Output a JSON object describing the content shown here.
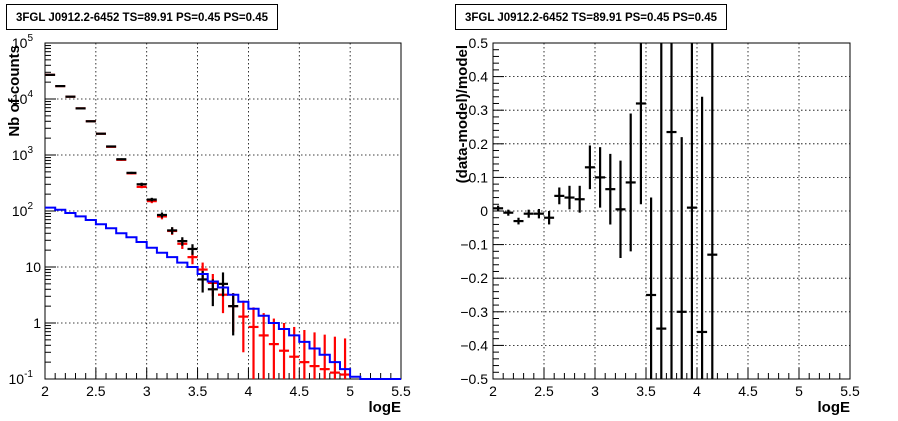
{
  "chart_data": [
    {
      "type": "scatter",
      "title": "3FGL J0912.2-6452 TS=89.91 PS=0.45 PS=0.45",
      "xlabel": "logE",
      "ylabel": "Nb of counts",
      "yscale": "log",
      "xlim": [
        2,
        5.5
      ],
      "ylim": [
        0.1,
        100000
      ],
      "grid": true,
      "x_ticks": [
        "2",
        "2.5",
        "3",
        "3.5",
        "4",
        "4.5",
        "5",
        "5.5"
      ],
      "y_ticks": [
        {
          "value": 0.1,
          "base": "10",
          "exp": "-1"
        },
        {
          "value": 1,
          "base": "1",
          "exp": ""
        },
        {
          "value": 10,
          "base": "10",
          "exp": ""
        },
        {
          "value": 100,
          "base": "10",
          "exp": "2"
        },
        {
          "value": 1000,
          "base": "10",
          "exp": "3"
        },
        {
          "value": 10000,
          "base": "10",
          "exp": "4"
        },
        {
          "value": 100000,
          "base": "10",
          "exp": "5"
        }
      ],
      "series": [
        {
          "color": "#ff0000",
          "style": "errorbars",
          "points": [
            {
              "x": 2.05,
              "y": 27000,
              "ylo": 26700,
              "yhi": 27300
            },
            {
              "x": 2.15,
              "y": 17000,
              "ylo": 16800,
              "yhi": 17200
            },
            {
              "x": 2.25,
              "y": 11000,
              "ylo": 10800,
              "yhi": 11200
            },
            {
              "x": 2.35,
              "y": 6800,
              "ylo": 6700,
              "yhi": 6900
            },
            {
              "x": 2.45,
              "y": 4000,
              "ylo": 3940,
              "yhi": 4060
            },
            {
              "x": 2.55,
              "y": 2400,
              "ylo": 2350,
              "yhi": 2450
            },
            {
              "x": 2.65,
              "y": 1400,
              "ylo": 1360,
              "yhi": 1440
            },
            {
              "x": 2.75,
              "y": 820,
              "ylo": 790,
              "yhi": 850
            },
            {
              "x": 2.85,
              "y": 470,
              "ylo": 450,
              "yhi": 490
            },
            {
              "x": 2.95,
              "y": 270,
              "ylo": 255,
              "yhi": 285
            },
            {
              "x": 3.05,
              "y": 150,
              "ylo": 138,
              "yhi": 162
            },
            {
              "x": 3.15,
              "y": 80,
              "ylo": 71,
              "yhi": 89
            },
            {
              "x": 3.25,
              "y": 44,
              "ylo": 37.5,
              "yhi": 50.5
            },
            {
              "x": 3.35,
              "y": 26,
              "ylo": 21,
              "yhi": 31
            },
            {
              "x": 3.45,
              "y": 15,
              "ylo": 11.2,
              "yhi": 18.8
            },
            {
              "x": 3.55,
              "y": 9,
              "ylo": 6,
              "yhi": 12
            },
            {
              "x": 3.65,
              "y": 5.2,
              "ylo": 3,
              "yhi": 7.5
            },
            {
              "x": 3.75,
              "y": 3.2,
              "ylo": 1.5,
              "yhi": 5
            },
            {
              "x": 3.85,
              "y": 2,
              "ylo": 0.7,
              "yhi": 3.4
            },
            {
              "x": 3.95,
              "y": 1.3,
              "ylo": 0.3,
              "yhi": 2.5
            },
            {
              "x": 4.05,
              "y": 0.85,
              "ylo": 0.1,
              "yhi": 1.9
            },
            {
              "x": 4.15,
              "y": 0.6,
              "ylo": 0.1,
              "yhi": 1.5
            },
            {
              "x": 4.25,
              "y": 0.42,
              "ylo": 0.1,
              "yhi": 1.2
            },
            {
              "x": 4.35,
              "y": 0.32,
              "ylo": 0.1,
              "yhi": 1.0
            },
            {
              "x": 4.45,
              "y": 0.25,
              "ylo": 0.1,
              "yhi": 0.85
            },
            {
              "x": 4.55,
              "y": 0.2,
              "ylo": 0.1,
              "yhi": 0.75
            },
            {
              "x": 4.65,
              "y": 0.17,
              "ylo": 0.1,
              "yhi": 0.68
            },
            {
              "x": 4.75,
              "y": 0.15,
              "ylo": 0.1,
              "yhi": 0.62
            },
            {
              "x": 4.85,
              "y": 0.13,
              "ylo": 0.1,
              "yhi": 0.57
            },
            {
              "x": 4.95,
              "y": 0.12,
              "ylo": 0.1,
              "yhi": 0.53
            }
          ]
        },
        {
          "color": "#000000",
          "style": "errorbars",
          "points": [
            {
              "x": 2.05,
              "y": 27000,
              "ylo": 26700,
              "yhi": 27300
            },
            {
              "x": 2.15,
              "y": 17000,
              "ylo": 16800,
              "yhi": 17200
            },
            {
              "x": 2.25,
              "y": 11000,
              "ylo": 10800,
              "yhi": 11200
            },
            {
              "x": 2.35,
              "y": 6800,
              "ylo": 6700,
              "yhi": 6900
            },
            {
              "x": 2.45,
              "y": 4000,
              "ylo": 3940,
              "yhi": 4060
            },
            {
              "x": 2.55,
              "y": 2400,
              "ylo": 2350,
              "yhi": 2450
            },
            {
              "x": 2.65,
              "y": 1420,
              "ylo": 1380,
              "yhi": 1460
            },
            {
              "x": 2.75,
              "y": 840,
              "ylo": 810,
              "yhi": 870
            },
            {
              "x": 2.85,
              "y": 480,
              "ylo": 460,
              "yhi": 500
            },
            {
              "x": 2.95,
              "y": 300,
              "ylo": 280,
              "yhi": 320
            },
            {
              "x": 3.05,
              "y": 160,
              "ylo": 148,
              "yhi": 172
            },
            {
              "x": 3.15,
              "y": 85,
              "ylo": 76,
              "yhi": 94
            },
            {
              "x": 3.25,
              "y": 45,
              "ylo": 38.5,
              "yhi": 51.5
            },
            {
              "x": 3.35,
              "y": 29,
              "ylo": 24,
              "yhi": 34
            },
            {
              "x": 3.45,
              "y": 21,
              "ylo": 16.5,
              "yhi": 25.5
            },
            {
              "x": 3.55,
              "y": 6,
              "ylo": 3.5,
              "yhi": 8.5
            },
            {
              "x": 3.65,
              "y": 4,
              "ylo": 2,
              "yhi": 6
            },
            {
              "x": 3.75,
              "y": 5,
              "ylo": 3,
              "yhi": 8
            },
            {
              "x": 3.85,
              "y": 2,
              "ylo": 0.6,
              "yhi": 3.4
            }
          ]
        },
        {
          "color": "#0000ff",
          "style": "histogram",
          "bin_edges": [
            2.0,
            2.1,
            2.2,
            2.3,
            2.4,
            2.5,
            2.6,
            2.7,
            2.8,
            2.9,
            3.0,
            3.1,
            3.2,
            3.3,
            3.4,
            3.5,
            3.6,
            3.7,
            3.8,
            3.9,
            4.0,
            4.1,
            4.2,
            4.3,
            4.4,
            4.5,
            4.6,
            4.7,
            4.8,
            4.9,
            5.0,
            5.1,
            5.2,
            5.3,
            5.4,
            5.5
          ],
          "values": [
            115,
            105,
            92,
            80,
            69,
            58,
            49,
            40,
            34,
            28,
            22,
            18,
            15,
            12,
            10,
            7.5,
            5.5,
            4.3,
            3.2,
            2.4,
            1.8,
            1.35,
            1.0,
            0.78,
            0.6,
            0.46,
            0.35,
            0.27,
            0.2,
            0.15,
            0.11,
            0.1,
            0.1,
            0.1,
            0.1
          ]
        }
      ]
    },
    {
      "type": "scatter",
      "title": "3FGL J0912.2-6452 TS=89.91 PS=0.45 PS=0.45",
      "xlabel": "logE",
      "ylabel": "(data-model)/model",
      "xlim": [
        2,
        5.5
      ],
      "ylim": [
        -0.5,
        0.5
      ],
      "grid": true,
      "x_ticks": [
        "2",
        "2.5",
        "3",
        "3.5",
        "4",
        "4.5",
        "5",
        "5.5"
      ],
      "y_ticks": [
        "−0.5",
        "−0.4",
        "−0.3",
        "−0.2",
        "−0.1",
        "0",
        "0.1",
        "0.2",
        "0.3",
        "0.4",
        "0.5"
      ],
      "series": [
        {
          "color": "#000000",
          "style": "errorbars",
          "points": [
            {
              "x": 2.05,
              "y": 0.008,
              "ylo": 0.0,
              "yhi": 0.016
            },
            {
              "x": 2.15,
              "y": -0.005,
              "ylo": -0.014,
              "yhi": 0.004
            },
            {
              "x": 2.25,
              "y": -0.03,
              "ylo": -0.04,
              "yhi": -0.02
            },
            {
              "x": 2.35,
              "y": -0.008,
              "ylo": -0.02,
              "yhi": 0.004
            },
            {
              "x": 2.45,
              "y": -0.008,
              "ylo": -0.022,
              "yhi": 0.006
            },
            {
              "x": 2.55,
              "y": -0.02,
              "ylo": -0.04,
              "yhi": 0.0
            },
            {
              "x": 2.65,
              "y": 0.045,
              "ylo": 0.02,
              "yhi": 0.07
            },
            {
              "x": 2.75,
              "y": 0.04,
              "ylo": 0.005,
              "yhi": 0.075
            },
            {
              "x": 2.85,
              "y": 0.035,
              "ylo": -0.005,
              "yhi": 0.075
            },
            {
              "x": 2.95,
              "y": 0.13,
              "ylo": 0.065,
              "yhi": 0.195
            },
            {
              "x": 3.05,
              "y": 0.1,
              "ylo": 0.01,
              "yhi": 0.19
            },
            {
              "x": 3.15,
              "y": 0.065,
              "ylo": -0.04,
              "yhi": 0.17
            },
            {
              "x": 3.25,
              "y": 0.005,
              "ylo": -0.14,
              "yhi": 0.15
            },
            {
              "x": 3.35,
              "y": 0.085,
              "ylo": -0.12,
              "yhi": 0.29
            },
            {
              "x": 3.45,
              "y": 0.32,
              "ylo": 0.02,
              "yhi": 0.5
            },
            {
              "x": 3.55,
              "y": -0.25,
              "ylo": -0.5,
              "yhi": 0.04
            },
            {
              "x": 3.65,
              "y": -0.35,
              "ylo": -0.5,
              "yhi": 0.5
            },
            {
              "x": 3.75,
              "y": 0.235,
              "ylo": -0.5,
              "yhi": 0.5
            },
            {
              "x": 3.85,
              "y": -0.3,
              "ylo": -0.5,
              "yhi": 0.22
            },
            {
              "x": 3.95,
              "y": 0.01,
              "ylo": -0.5,
              "yhi": 0.5
            },
            {
              "x": 4.05,
              "y": -0.36,
              "ylo": -0.5,
              "yhi": 0.34
            },
            {
              "x": 4.15,
              "y": -0.13,
              "ylo": -0.5,
              "yhi": 0.5
            }
          ]
        }
      ]
    }
  ]
}
